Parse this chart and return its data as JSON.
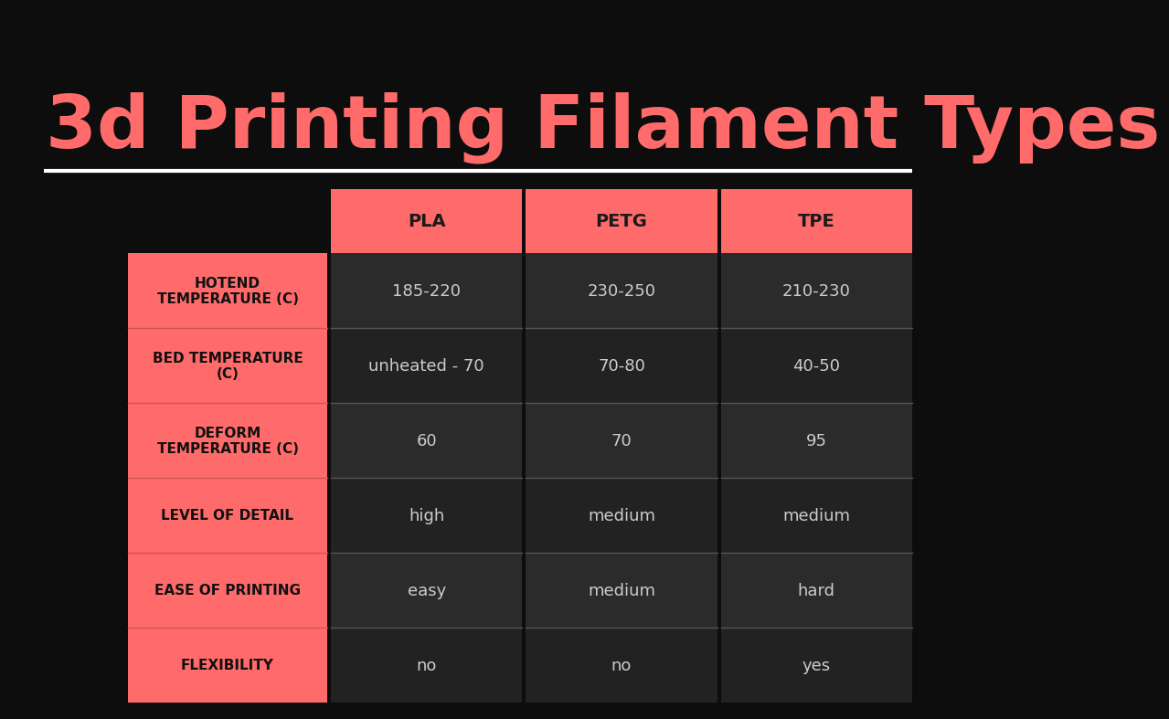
{
  "title": "3d Printing Filament Types",
  "title_color": "#FF6B6B",
  "background_color": "#0d0d0d",
  "red_color": "#FF6B6B",
  "cell_color_even": "#2b2b2b",
  "cell_color_odd": "#222222",
  "separator_color": "#555555",
  "white_line_color": "#ffffff",
  "header_text_color": "#1a1a1a",
  "row_label_text_color": "#111111",
  "cell_text_color": "#cccccc",
  "columns": [
    "PLA",
    "PETG",
    "TPE"
  ],
  "rows": [
    "HOTEND\nTEMPERATURE (C)",
    "BED TEMPERATURE\n(C)",
    "DEFORM\nTEMPERATURE (C)",
    "LEVEL OF DETAIL",
    "EASE OF PRINTING",
    "FLEXIBILITY"
  ],
  "data": [
    [
      "185-220",
      "230-250",
      "210-230"
    ],
    [
      "unheated - 70",
      "70-80",
      "40-50"
    ],
    [
      "60",
      "70",
      "95"
    ],
    [
      "high",
      "medium",
      "medium"
    ],
    [
      "easy",
      "medium",
      "hard"
    ],
    [
      "no",
      "no",
      "yes"
    ]
  ]
}
